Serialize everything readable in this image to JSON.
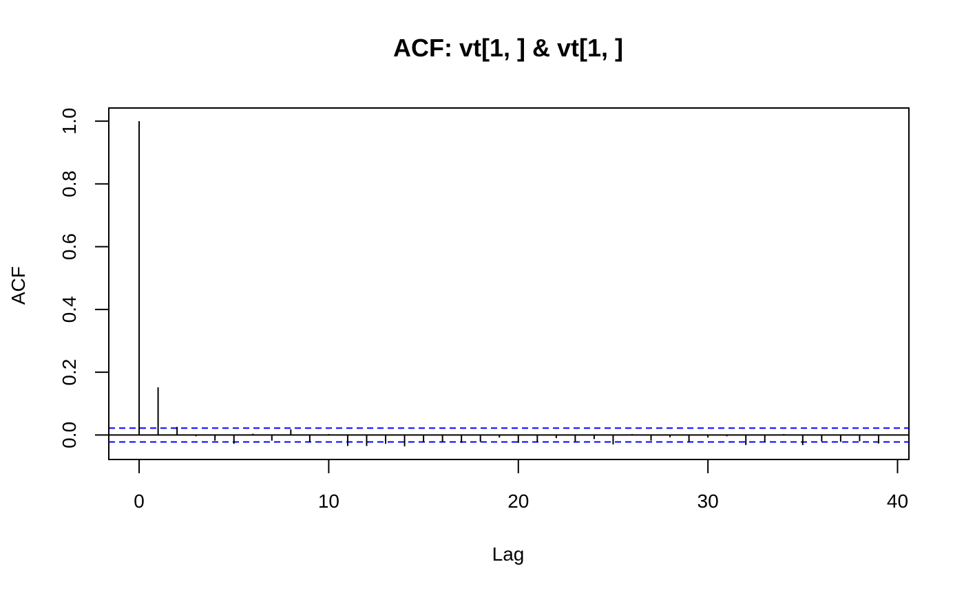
{
  "chart_data": {
    "type": "bar",
    "title": "ACF: vt[1, ] & vt[1, ]",
    "xlabel": "Lag",
    "ylabel": "ACF",
    "xlim": [
      -1.6,
      40.6
    ],
    "ylim": [
      -0.078,
      1.042
    ],
    "x_ticks": [
      "0",
      "10",
      "20",
      "30",
      "40"
    ],
    "y_ticks": [
      "0.0",
      "0.2",
      "0.4",
      "0.6",
      "0.8",
      "1.0"
    ],
    "confidence_bound": 0.022,
    "grid": false,
    "colors": {
      "bars": "#000000",
      "confidence_lines": "#0000ff",
      "frame": "#000000"
    },
    "lags": [
      0,
      1,
      2,
      3,
      4,
      5,
      6,
      7,
      8,
      9,
      10,
      11,
      12,
      13,
      14,
      15,
      16,
      17,
      18,
      19,
      20,
      21,
      22,
      23,
      24,
      25,
      26,
      27,
      28,
      29,
      30,
      31,
      32,
      33,
      34,
      35,
      36,
      37,
      38,
      39,
      40
    ],
    "values": [
      1.0,
      0.152,
      0.026,
      -0.004,
      -0.018,
      -0.028,
      0.004,
      -0.018,
      0.018,
      -0.022,
      0.003,
      -0.035,
      -0.035,
      -0.028,
      -0.036,
      -0.024,
      -0.022,
      -0.025,
      -0.022,
      -0.008,
      -0.025,
      -0.022,
      -0.01,
      -0.02,
      -0.013,
      -0.03,
      0.003,
      -0.018,
      -0.007,
      -0.022,
      -0.008,
      -0.004,
      -0.032,
      -0.022,
      0.003,
      -0.032,
      -0.02,
      -0.022,
      -0.02,
      -0.027,
      0.002
    ]
  }
}
